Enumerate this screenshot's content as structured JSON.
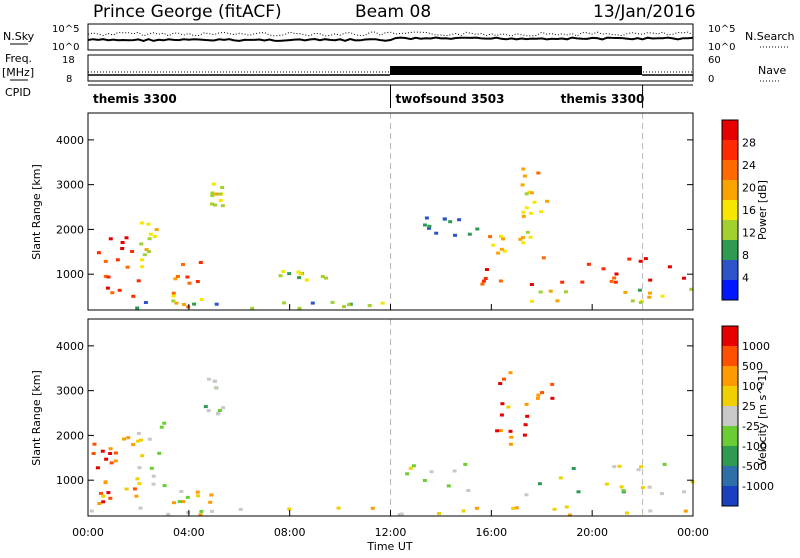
{
  "header": {
    "station": "Prince George (fitACF)",
    "beam": "Beam 08",
    "date": "13/Jan/2016"
  },
  "left_labels": {
    "nsky": "N.Sky",
    "freq": "Freq.",
    "mhz": "[MHz]",
    "cpid": "CPID"
  },
  "right_labels": {
    "nsearch": "N.Search",
    "nave": "Nave"
  },
  "noise_axis": {
    "top_left": "10^5",
    "bottom_left": "10^0",
    "top_right": "10^5",
    "bottom_right": "10^0"
  },
  "freq_axis": {
    "top_left": "18",
    "bottom_left": "8",
    "top_right": "60",
    "bottom_right": "0"
  },
  "cpid_segments": [
    {
      "label": "themis 3300",
      "start_h": 0,
      "end_h": 12
    },
    {
      "label": "twofsound 3503",
      "start_h": 12,
      "end_h": 22
    },
    {
      "label": "themis 3300",
      "start_h": 22,
      "end_h": 24
    }
  ],
  "x_axis": {
    "label": "Time UT",
    "ticks": [
      "00:00",
      "04:00",
      "08:00",
      "12:00",
      "16:00",
      "20:00",
      "00:00"
    ]
  },
  "chart_data": [
    {
      "type": "heatmap",
      "name": "power",
      "ylabel": "Slant Range [km]",
      "yticks": [
        "1000",
        "2000",
        "3000",
        "4000"
      ],
      "ylim": [
        200,
        4600
      ],
      "xlim": [
        0,
        24
      ],
      "colorbar": {
        "label": "Power [dB]",
        "ticks": [
          "4",
          "8",
          "12",
          "16",
          "20",
          "24",
          "28"
        ],
        "colors": [
          "#0018ff",
          "#2d53c8",
          "#2e9a52",
          "#a2d030",
          "#f7e600",
          "#f7a300",
          "#ff6a00",
          "#ff2a00",
          "#e60000"
        ]
      },
      "regions": [
        {
          "x": [
            0.1,
            2.0
          ],
          "y": [
            500,
            1900
          ],
          "level": 0.9
        },
        {
          "x": [
            2.0,
            2.7
          ],
          "y": [
            1200,
            2300
          ],
          "level": 0.5
        },
        {
          "x": [
            3.3,
            4.6
          ],
          "y": [
            300,
            1300
          ],
          "level": 0.7
        },
        {
          "x": [
            4.8,
            5.3
          ],
          "y": [
            2500,
            3200
          ],
          "level": 0.45
        },
        {
          "x": [
            7.5,
            9.5
          ],
          "y": [
            900,
            1100
          ],
          "level": 0.4
        },
        {
          "x": [
            15.5,
            24
          ],
          "y": [
            800,
            1400
          ],
          "level": 0.9
        },
        {
          "x": [
            15.8,
            17.5
          ],
          "y": [
            1400,
            2000
          ],
          "level": 0.55
        },
        {
          "x": [
            17.0,
            18.3
          ],
          "y": [
            2200,
            3500
          ],
          "level": 0.6
        },
        {
          "x": [
            17.5,
            24
          ],
          "y": [
            400,
            700
          ],
          "level": 0.45
        },
        {
          "x": [
            13.0,
            15.5
          ],
          "y": [
            1900,
            2300
          ],
          "level": 0.25
        },
        {
          "x": [
            0,
            12
          ],
          "y": [
            250,
            450
          ],
          "level": 0.3
        }
      ]
    },
    {
      "type": "heatmap",
      "name": "velocity",
      "ylabel": "Slant Range [km]",
      "yticks": [
        "1000",
        "2000",
        "3000",
        "4000"
      ],
      "ylim": [
        200,
        4600
      ],
      "xlim": [
        0,
        24
      ],
      "colorbar": {
        "label": "Velocity [m s^-1]",
        "ticks": [
          "1000",
          "500",
          "100",
          "25",
          "-25",
          "-100",
          "-500",
          "-1000"
        ],
        "colors": [
          "#1a3fbf",
          "#2f6fa8",
          "#2f9a52",
          "#6acd33",
          "#c8c8c8",
          "#f0d000",
          "#ff9a00",
          "#ff5000",
          "#e60000"
        ]
      },
      "regions": [
        {
          "x": [
            0.1,
            1.8
          ],
          "y": [
            1300,
            2000
          ],
          "level": 0.9
        },
        {
          "x": [
            0.1,
            2.0
          ],
          "y": [
            500,
            1000
          ],
          "level": 0.8
        },
        {
          "x": [
            1.8,
            3.0
          ],
          "y": [
            900,
            2500
          ],
          "level": 0.45
        },
        {
          "x": [
            3.3,
            5.0
          ],
          "y": [
            300,
            800
          ],
          "level": 0.6
        },
        {
          "x": [
            12.5,
            24
          ],
          "y": [
            700,
            1400
          ],
          "level": 0.45
        },
        {
          "x": [
            16.0,
            18.5
          ],
          "y": [
            1800,
            3600
          ],
          "level": 0.85
        },
        {
          "x": [
            0,
            24
          ],
          "y": [
            250,
            450
          ],
          "level": 0.6
        },
        {
          "x": [
            4.5,
            5.3
          ],
          "y": [
            2500,
            3300
          ],
          "level": 0.45
        }
      ]
    }
  ]
}
